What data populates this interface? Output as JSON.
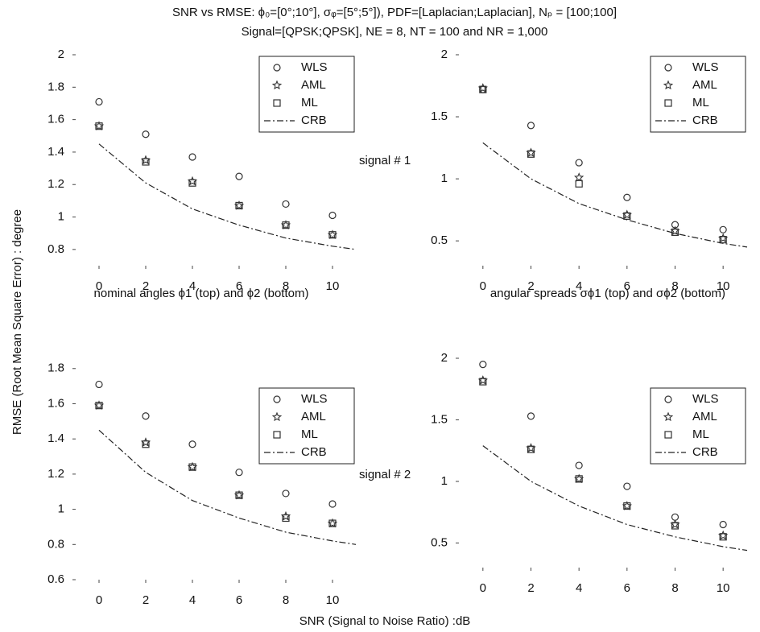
{
  "title": "SNR  vs RMSE: ϕ₀=[0°;10°], σᵩ=[5°;5°]), PDF=[Laplacian;Laplacian], Nₚ = [100;100]",
  "subtitle": "Signal=[QPSK;QPSK], NE = 8, NT = 100 and NR = 1,000",
  "ylabel": "RMSE (Root Mean Square Error) : degree",
  "xlabel": "SNR (Signal to Noise Ratio) :dB",
  "chart_data": [
    {
      "type": "line",
      "legend": "upper right",
      "annotation": "signal # 1",
      "caption": "nominal angles ϕ1 (top) and ϕ2 (bottom)",
      "x": [
        0,
        2,
        4,
        6,
        8,
        10
      ],
      "xlim": [
        -1,
        11
      ],
      "xticks": [
        0,
        2,
        4,
        6,
        8,
        10
      ],
      "ylim": [
        0.7,
        2
      ],
      "yticks": [
        0.8,
        1,
        1.2,
        1.4,
        1.6,
        1.8,
        2
      ],
      "series": [
        {
          "name": "WLS",
          "marker": "circle",
          "color": "#333333",
          "values": [
            1.71,
            1.51,
            1.37,
            1.25,
            1.08,
            1.01
          ]
        },
        {
          "name": "AML",
          "marker": "star",
          "color": "#333333",
          "values": [
            1.56,
            1.35,
            1.22,
            1.07,
            0.95,
            0.89
          ]
        },
        {
          "name": "ML",
          "marker": "square",
          "color": "#333333",
          "values": [
            1.56,
            1.34,
            1.21,
            1.07,
            0.95,
            0.89
          ]
        },
        {
          "name": "CRB",
          "linestyle": "dashdot",
          "color": "#222222",
          "x": [
            0,
            2,
            4,
            6,
            8,
            10,
            11
          ],
          "values": [
            1.45,
            1.21,
            1.05,
            0.95,
            0.87,
            0.82,
            0.8
          ]
        }
      ]
    },
    {
      "type": "line",
      "legend": "upper right",
      "caption": "angular spreads σϕ1 (top) and σϕ2 (bottom)",
      "x": [
        0,
        2,
        4,
        6,
        8,
        10
      ],
      "xlim": [
        -1,
        11
      ],
      "xticks": [
        0,
        2,
        4,
        6,
        8,
        10
      ],
      "ylim": [
        0.3,
        2
      ],
      "yticks": [
        0.5,
        1,
        1.5,
        2
      ],
      "series": [
        {
          "name": "WLS",
          "marker": "circle",
          "color": "#333333",
          "values": [
            1.72,
            1.43,
            1.13,
            0.85,
            0.63,
            0.59
          ]
        },
        {
          "name": "AML",
          "marker": "star",
          "color": "#333333",
          "values": [
            1.73,
            1.21,
            1.01,
            0.71,
            0.58,
            0.52
          ]
        },
        {
          "name": "ML",
          "marker": "square",
          "color": "#333333",
          "values": [
            1.72,
            1.2,
            0.96,
            0.7,
            0.57,
            0.51
          ]
        },
        {
          "name": "CRB",
          "linestyle": "dashdot",
          "color": "#222222",
          "x": [
            0,
            2,
            4,
            6,
            8,
            10,
            11
          ],
          "values": [
            1.29,
            1.0,
            0.8,
            0.67,
            0.56,
            0.48,
            0.45
          ]
        }
      ]
    },
    {
      "type": "line",
      "legend": "upper right",
      "annotation": "signal # 2",
      "x": [
        0,
        2,
        4,
        6,
        8,
        10
      ],
      "xlim": [
        -1,
        11
      ],
      "xticks": [
        0,
        2,
        4,
        6,
        8,
        10
      ],
      "ylim": [
        0.6,
        1.95
      ],
      "yticks": [
        0.6,
        0.8,
        1,
        1.2,
        1.4,
        1.6,
        1.8
      ],
      "series": [
        {
          "name": "WLS",
          "marker": "circle",
          "color": "#333333",
          "values": [
            1.71,
            1.53,
            1.37,
            1.21,
            1.09,
            1.03
          ]
        },
        {
          "name": "AML",
          "marker": "star",
          "color": "#333333",
          "values": [
            1.59,
            1.38,
            1.24,
            1.08,
            0.96,
            0.92
          ]
        },
        {
          "name": "ML",
          "marker": "square",
          "color": "#333333",
          "values": [
            1.59,
            1.37,
            1.24,
            1.08,
            0.95,
            0.92
          ]
        },
        {
          "name": "CRB",
          "linestyle": "dashdot",
          "color": "#222222",
          "x": [
            0,
            2,
            4,
            6,
            8,
            10,
            11
          ],
          "values": [
            1.45,
            1.21,
            1.05,
            0.95,
            0.87,
            0.82,
            0.8
          ]
        }
      ]
    },
    {
      "type": "line",
      "legend": "upper right",
      "x": [
        0,
        2,
        4,
        6,
        8,
        10
      ],
      "xlim": [
        -1,
        11
      ],
      "xticks": [
        0,
        2,
        4,
        6,
        8,
        10
      ],
      "ylim": [
        0.3,
        2
      ],
      "yticks": [
        0.5,
        1,
        1.5,
        2
      ],
      "series": [
        {
          "name": "WLS",
          "marker": "circle",
          "color": "#333333",
          "values": [
            1.95,
            1.53,
            1.13,
            0.96,
            0.71,
            0.65
          ]
        },
        {
          "name": "AML",
          "marker": "star",
          "color": "#333333",
          "values": [
            1.82,
            1.27,
            1.02,
            0.8,
            0.65,
            0.56
          ]
        },
        {
          "name": "ML",
          "marker": "square",
          "color": "#333333",
          "values": [
            1.81,
            1.26,
            1.02,
            0.8,
            0.64,
            0.55
          ]
        },
        {
          "name": "CRB",
          "linestyle": "dashdot",
          "color": "#222222",
          "x": [
            0,
            2,
            4,
            6,
            8,
            10,
            11
          ],
          "values": [
            1.29,
            1.0,
            0.8,
            0.65,
            0.55,
            0.47,
            0.44
          ]
        }
      ]
    }
  ]
}
